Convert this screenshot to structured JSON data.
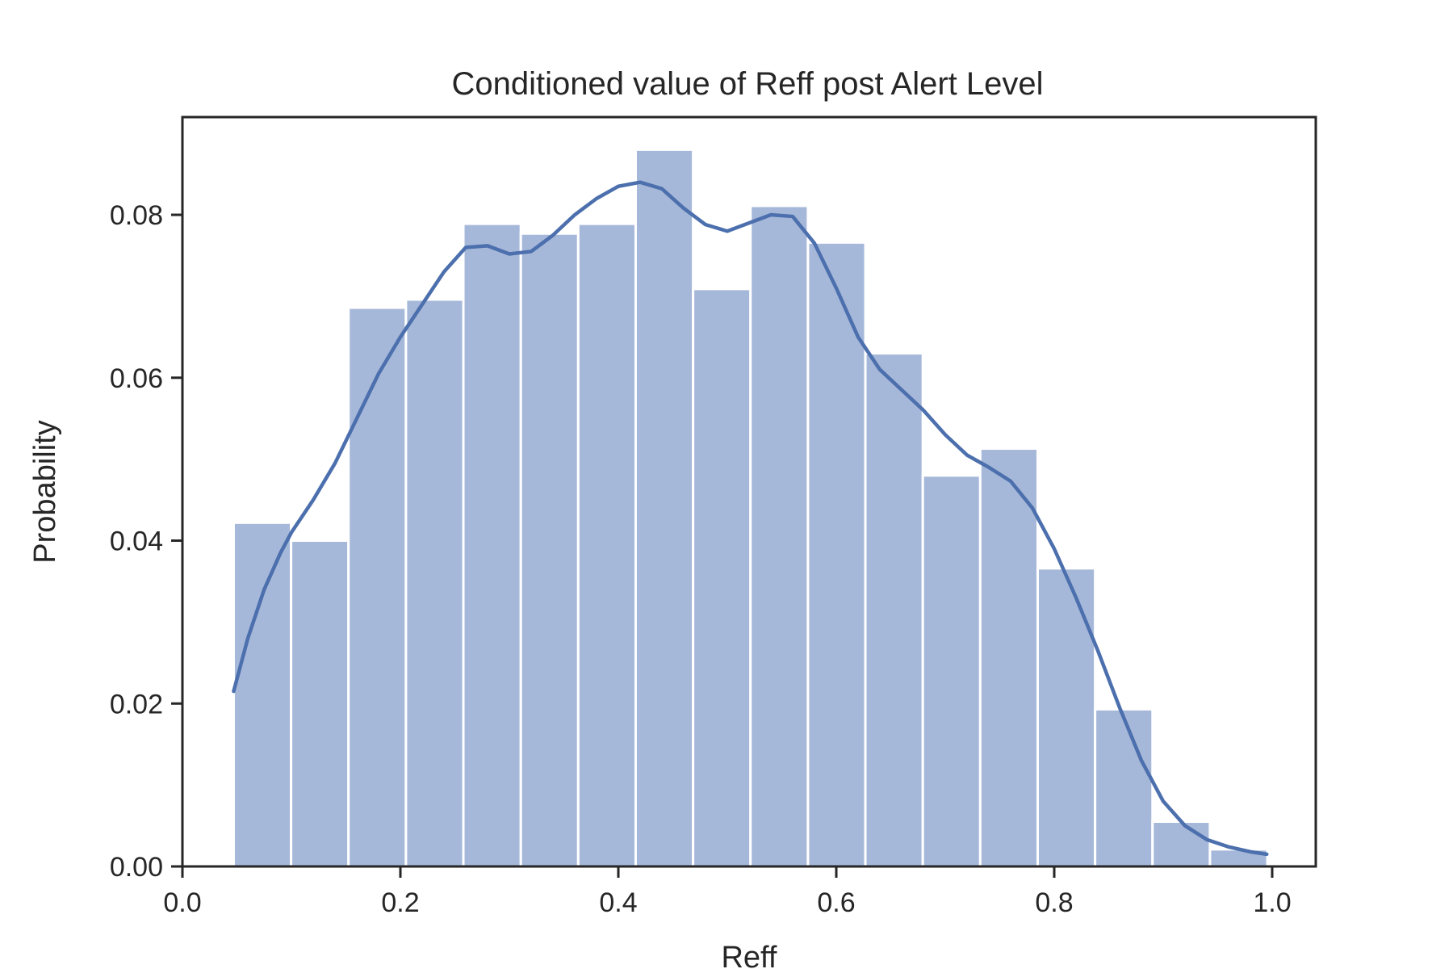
{
  "chart_data": {
    "type": "bar",
    "title": "Conditioned value of Reff post Alert Level",
    "xlabel": "Reff",
    "ylabel": "Probability",
    "xlim": [
      0.0,
      1.04
    ],
    "ylim": [
      0.0,
      0.092
    ],
    "xticks": [
      {
        "value": 0.0,
        "label": "0.0"
      },
      {
        "value": 0.2,
        "label": "0.2"
      },
      {
        "value": 0.4,
        "label": "0.4"
      },
      {
        "value": 0.6,
        "label": "0.6"
      },
      {
        "value": 0.8,
        "label": "0.8"
      },
      {
        "value": 1.0,
        "label": "1.0"
      }
    ],
    "yticks": [
      {
        "value": 0.0,
        "label": "0.00"
      },
      {
        "value": 0.02,
        "label": "0.02"
      },
      {
        "value": 0.04,
        "label": "0.04"
      },
      {
        "value": 0.06,
        "label": "0.06"
      },
      {
        "value": 0.08,
        "label": "0.08"
      }
    ],
    "grid": false,
    "bins": [
      {
        "x0": 0.047,
        "x1": 0.0997,
        "value": 0.0422
      },
      {
        "x0": 0.0997,
        "x1": 0.1524,
        "value": 0.04
      },
      {
        "x0": 0.1524,
        "x1": 0.2051,
        "value": 0.0686
      },
      {
        "x0": 0.2051,
        "x1": 0.2578,
        "value": 0.0696
      },
      {
        "x0": 0.2578,
        "x1": 0.3105,
        "value": 0.0789
      },
      {
        "x0": 0.3105,
        "x1": 0.3632,
        "value": 0.0777
      },
      {
        "x0": 0.3632,
        "x1": 0.4159,
        "value": 0.0789
      },
      {
        "x0": 0.4159,
        "x1": 0.4686,
        "value": 0.088
      },
      {
        "x0": 0.4686,
        "x1": 0.5213,
        "value": 0.0709
      },
      {
        "x0": 0.5213,
        "x1": 0.574,
        "value": 0.0811
      },
      {
        "x0": 0.574,
        "x1": 0.6267,
        "value": 0.0766
      },
      {
        "x0": 0.6267,
        "x1": 0.6794,
        "value": 0.063
      },
      {
        "x0": 0.6794,
        "x1": 0.7321,
        "value": 0.048
      },
      {
        "x0": 0.7321,
        "x1": 0.7848,
        "value": 0.0513
      },
      {
        "x0": 0.7848,
        "x1": 0.8375,
        "value": 0.0366
      },
      {
        "x0": 0.8375,
        "x1": 0.8902,
        "value": 0.0193
      },
      {
        "x0": 0.8902,
        "x1": 0.9429,
        "value": 0.0055
      },
      {
        "x0": 0.9429,
        "x1": 0.9956,
        "value": 0.0021
      }
    ],
    "kde": {
      "x": [
        0.047,
        0.06,
        0.075,
        0.09,
        0.1,
        0.12,
        0.14,
        0.16,
        0.18,
        0.2,
        0.22,
        0.24,
        0.26,
        0.28,
        0.3,
        0.32,
        0.34,
        0.36,
        0.38,
        0.4,
        0.42,
        0.44,
        0.46,
        0.48,
        0.5,
        0.52,
        0.54,
        0.56,
        0.58,
        0.6,
        0.62,
        0.64,
        0.66,
        0.68,
        0.7,
        0.72,
        0.74,
        0.76,
        0.78,
        0.8,
        0.82,
        0.84,
        0.86,
        0.88,
        0.9,
        0.92,
        0.94,
        0.96,
        0.98,
        0.995
      ],
      "y": [
        0.0215,
        0.028,
        0.034,
        0.0385,
        0.041,
        0.045,
        0.0495,
        0.055,
        0.0605,
        0.065,
        0.069,
        0.073,
        0.076,
        0.0762,
        0.0752,
        0.0755,
        0.0775,
        0.08,
        0.082,
        0.0835,
        0.084,
        0.0832,
        0.0808,
        0.0788,
        0.078,
        0.079,
        0.08,
        0.0798,
        0.0765,
        0.071,
        0.065,
        0.061,
        0.0585,
        0.056,
        0.053,
        0.0505,
        0.049,
        0.0473,
        0.044,
        0.039,
        0.033,
        0.0265,
        0.0195,
        0.013,
        0.008,
        0.005,
        0.0033,
        0.0024,
        0.0018,
        0.0015
      ]
    }
  }
}
